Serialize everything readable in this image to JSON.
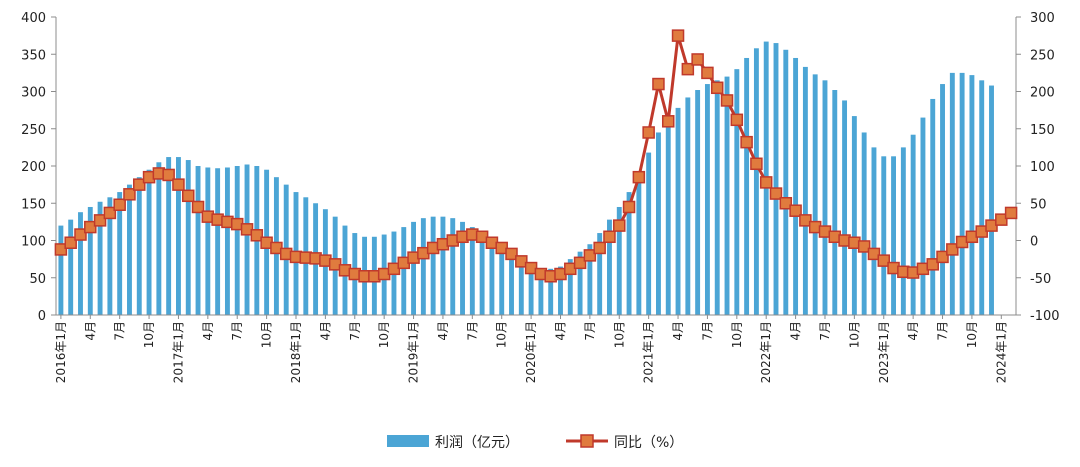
{
  "chart_data": {
    "type": "bar+line",
    "legend_position": "bottom",
    "grid": false,
    "y_left": {
      "min": 0,
      "max": 400,
      "step": 50
    },
    "y_right": {
      "min": -100,
      "max": 300,
      "step": 50
    },
    "series": [
      {
        "name": "利润（亿元）",
        "kind": "bar",
        "axis": "left",
        "color": "#4BA5D5",
        "values": [
          120,
          128,
          138,
          145,
          152,
          158,
          165,
          175,
          185,
          195,
          205,
          212,
          212,
          208,
          200,
          198,
          197,
          198,
          200,
          202,
          200,
          195,
          185,
          175,
          165,
          158,
          150,
          142,
          132,
          120,
          110,
          105,
          105,
          108,
          112,
          118,
          125,
          130,
          132,
          132,
          130,
          125,
          118,
          110,
          100,
          92,
          85,
          75,
          68,
          62,
          62,
          65,
          75,
          85,
          95,
          110,
          128,
          145,
          165,
          190,
          218,
          245,
          262,
          278,
          292,
          302,
          310,
          315,
          320,
          330,
          345,
          358,
          367,
          365,
          356,
          345,
          333,
          323,
          315,
          302,
          288,
          267,
          245,
          225,
          213,
          213,
          225,
          242,
          265,
          290,
          310,
          325,
          325,
          322,
          315,
          308
        ]
      },
      {
        "name": "同比（%）",
        "kind": "line",
        "axis": "right",
        "color": "#C0392B",
        "marker_color": "#E07B3E",
        "values": [
          -12,
          -3,
          8,
          18,
          27,
          37,
          48,
          62,
          75,
          85,
          90,
          88,
          75,
          60,
          45,
          32,
          28,
          25,
          22,
          15,
          7,
          -3,
          -10,
          -18,
          -22,
          -23,
          -24,
          -27,
          -32,
          -40,
          -45,
          -48,
          -48,
          -45,
          -38,
          -30,
          -23,
          -17,
          -10,
          -5,
          0,
          5,
          8,
          5,
          -3,
          -10,
          -18,
          -28,
          -37,
          -45,
          -48,
          -45,
          -38,
          -30,
          -20,
          -10,
          5,
          20,
          45,
          85,
          145,
          210,
          160,
          275,
          230,
          243,
          225,
          205,
          188,
          162,
          132,
          103,
          78,
          63,
          50,
          40,
          27,
          18,
          12,
          5,
          0,
          -3,
          -8,
          -18,
          -27,
          -37,
          -42,
          -43,
          -38,
          -32,
          -22,
          -12,
          -2,
          5,
          12,
          20,
          28,
          37
        ]
      }
    ],
    "x_labels": [
      {
        "i": 0,
        "label": "2016年1月"
      },
      {
        "i": 3,
        "label": "4月"
      },
      {
        "i": 6,
        "label": "7月"
      },
      {
        "i": 9,
        "label": "10月"
      },
      {
        "i": 12,
        "label": "2017年1月"
      },
      {
        "i": 15,
        "label": "4月"
      },
      {
        "i": 18,
        "label": "7月"
      },
      {
        "i": 21,
        "label": "10月"
      },
      {
        "i": 24,
        "label": "2018年1月"
      },
      {
        "i": 27,
        "label": "4月"
      },
      {
        "i": 30,
        "label": "7月"
      },
      {
        "i": 33,
        "label": "10月"
      },
      {
        "i": 36,
        "label": "2019年1月"
      },
      {
        "i": 39,
        "label": "4月"
      },
      {
        "i": 42,
        "label": "7月"
      },
      {
        "i": 45,
        "label": "10月"
      },
      {
        "i": 48,
        "label": "2020年1月"
      },
      {
        "i": 51,
        "label": "4月"
      },
      {
        "i": 54,
        "label": "7月"
      },
      {
        "i": 57,
        "label": "10月"
      },
      {
        "i": 60,
        "label": "2021年1月"
      },
      {
        "i": 63,
        "label": "4月"
      },
      {
        "i": 66,
        "label": "7月"
      },
      {
        "i": 69,
        "label": "10月"
      },
      {
        "i": 72,
        "label": "2022年1月"
      },
      {
        "i": 75,
        "label": "4月"
      },
      {
        "i": 78,
        "label": "7月"
      },
      {
        "i": 81,
        "label": "10月"
      },
      {
        "i": 84,
        "label": "2023年1月"
      },
      {
        "i": 87,
        "label": "4月"
      },
      {
        "i": 90,
        "label": "7月"
      },
      {
        "i": 93,
        "label": "10月"
      },
      {
        "i": 96,
        "label": "2024年1月"
      }
    ]
  }
}
